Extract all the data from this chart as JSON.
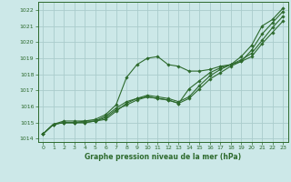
{
  "bg_color": "#cce8e8",
  "grid_color": "#aacccc",
  "line_color": "#2d6a2d",
  "title": "Graphe pression niveau de la mer (hPa)",
  "xlim": [
    -0.5,
    23.5
  ],
  "ylim": [
    1013.8,
    1022.5
  ],
  "xticks": [
    0,
    1,
    2,
    3,
    4,
    5,
    6,
    7,
    8,
    9,
    10,
    11,
    12,
    13,
    14,
    15,
    16,
    17,
    18,
    19,
    20,
    21,
    22,
    23
  ],
  "yticks": [
    1014,
    1015,
    1016,
    1017,
    1018,
    1019,
    1020,
    1021,
    1022
  ],
  "series": [
    [
      1014.3,
      1014.9,
      1015.1,
      1015.1,
      1015.1,
      1015.2,
      1015.5,
      1016.1,
      1017.8,
      1018.6,
      1019.0,
      1019.1,
      1018.6,
      1018.5,
      1018.2,
      1018.2,
      1018.3,
      1018.5,
      1018.6,
      1019.1,
      1019.8,
      1021.0,
      1021.4,
      1022.1
    ],
    [
      1014.3,
      1014.9,
      1015.0,
      1015.0,
      1015.1,
      1015.1,
      1015.4,
      1015.9,
      1016.3,
      1016.5,
      1016.6,
      1016.5,
      1016.4,
      1016.2,
      1017.1,
      1017.6,
      1018.1,
      1018.4,
      1018.6,
      1018.8,
      1019.5,
      1020.5,
      1021.2,
      1021.9
    ],
    [
      1014.3,
      1014.9,
      1015.0,
      1015.0,
      1015.0,
      1015.1,
      1015.2,
      1015.7,
      1016.2,
      1016.5,
      1016.7,
      1016.6,
      1016.5,
      1016.3,
      1016.6,
      1017.3,
      1017.9,
      1018.3,
      1018.6,
      1018.9,
      1019.3,
      1020.1,
      1020.9,
      1021.6
    ],
    [
      1014.3,
      1014.9,
      1015.0,
      1015.0,
      1015.0,
      1015.1,
      1015.3,
      1015.8,
      1016.1,
      1016.4,
      1016.6,
      1016.5,
      1016.4,
      1016.2,
      1016.5,
      1017.1,
      1017.7,
      1018.1,
      1018.5,
      1018.8,
      1019.1,
      1019.9,
      1020.6,
      1021.3
    ]
  ]
}
